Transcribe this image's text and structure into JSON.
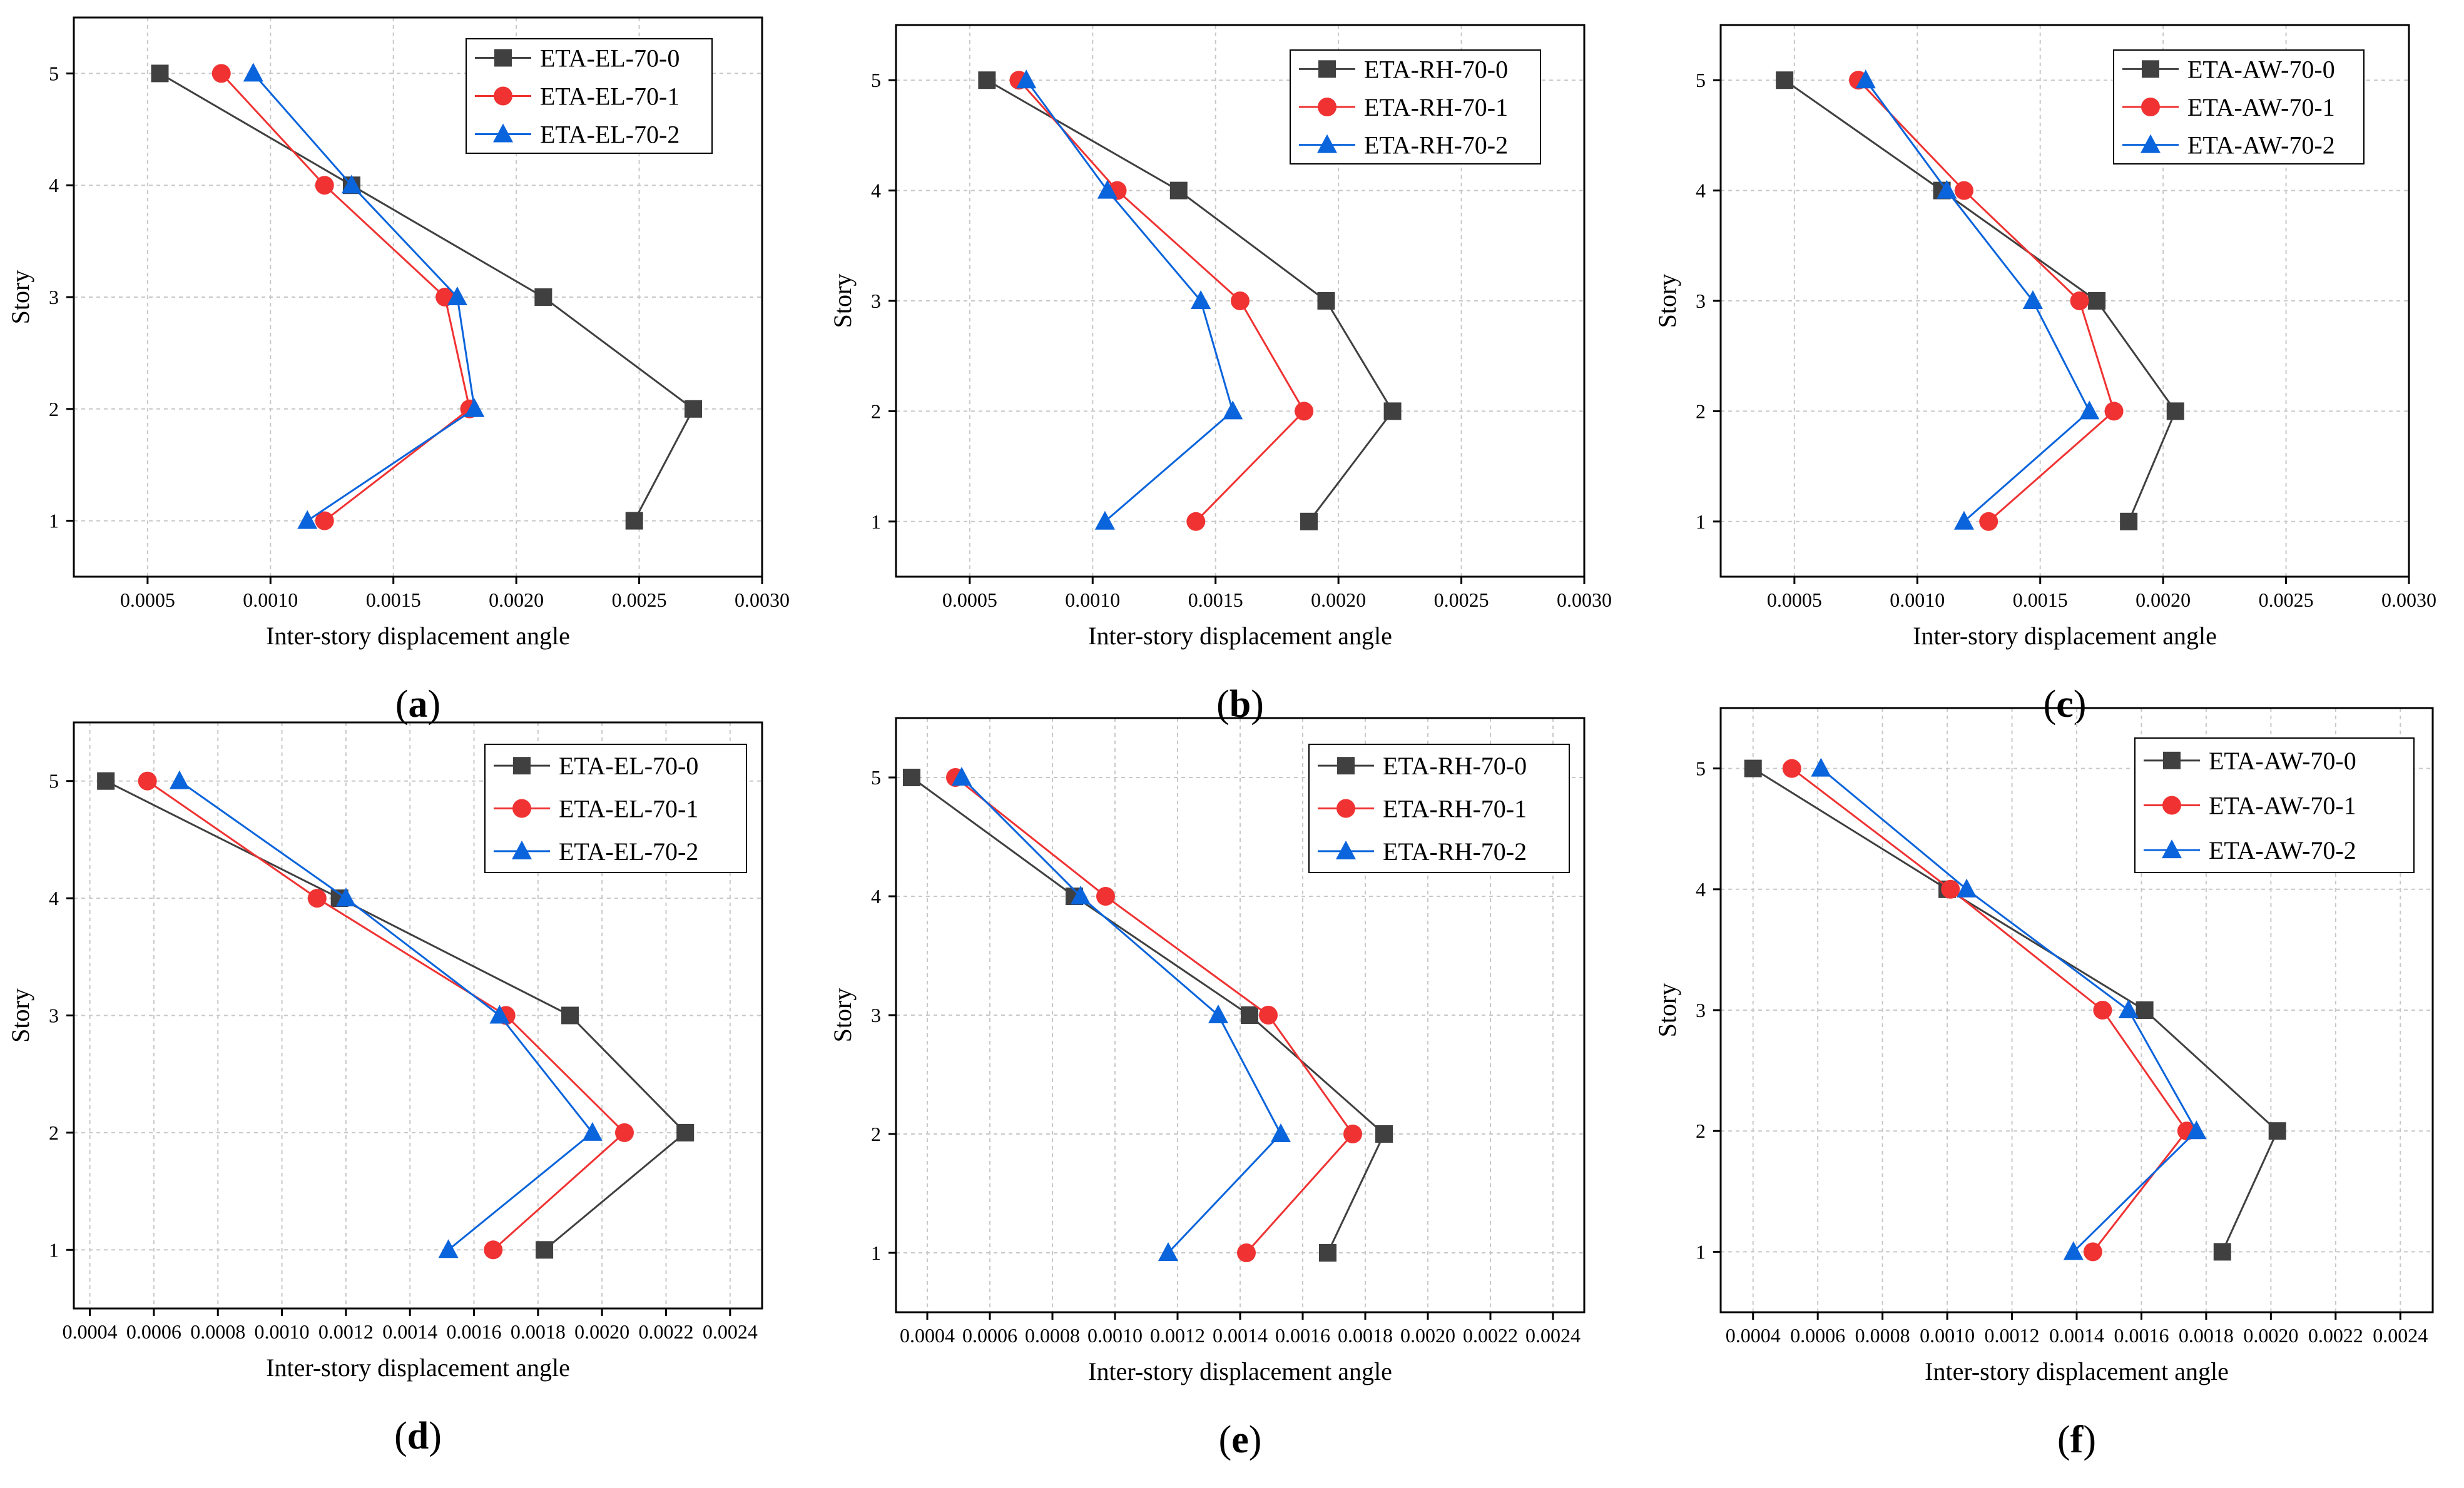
{
  "colors": {
    "series": [
      "#404040",
      "#f03232",
      "#0a64dc"
    ],
    "grid": "#c8c8c8",
    "axis": "#000000"
  },
  "chart_data": [
    {
      "type": "line",
      "caption": "a",
      "xlabel": "Inter-story displacement angle",
      "ylabel": "Story",
      "xlim": [
        0.0002,
        0.003
      ],
      "ylim": [
        0.5,
        5.5
      ],
      "xticks": [
        0.0005,
        0.001,
        0.0015,
        0.002,
        0.0025,
        0.003
      ],
      "xtick_labels": [
        "0.0005",
        "0.0010",
        "0.0015",
        "0.0020",
        "0.0025",
        "0.0030"
      ],
      "yticks": [
        1,
        2,
        3,
        4,
        5
      ],
      "grid": true,
      "legend": "top-right",
      "series": [
        {
          "name": "ETA-EL-70-0",
          "marker": "square",
          "x": [
            0.00248,
            0.00272,
            0.00211,
            0.00133,
            0.00055
          ],
          "y": [
            1,
            2,
            3,
            4,
            5
          ]
        },
        {
          "name": "ETA-EL-70-1",
          "marker": "circle",
          "x": [
            0.00122,
            0.00181,
            0.00171,
            0.00122,
            0.0008
          ],
          "y": [
            1,
            2,
            3,
            4,
            5
          ]
        },
        {
          "name": "ETA-EL-70-2",
          "marker": "triangle",
          "x": [
            0.00115,
            0.00183,
            0.00176,
            0.00133,
            0.00093
          ],
          "y": [
            1,
            2,
            3,
            4,
            5
          ]
        }
      ]
    },
    {
      "type": "line",
      "caption": "b",
      "xlabel": "Inter-story displacement angle",
      "ylabel": "Story",
      "xlim": [
        0.0002,
        0.003
      ],
      "ylim": [
        0.5,
        5.5
      ],
      "xticks": [
        0.0005,
        0.001,
        0.0015,
        0.002,
        0.0025,
        0.003
      ],
      "xtick_labels": [
        "0.0005",
        "0.0010",
        "0.0015",
        "0.0020",
        "0.0025",
        "0.0030"
      ],
      "yticks": [
        1,
        2,
        3,
        4,
        5
      ],
      "grid": true,
      "legend": "top-right",
      "series": [
        {
          "name": "ETA-RH-70-0",
          "marker": "square",
          "x": [
            0.00188,
            0.00222,
            0.00195,
            0.00135,
            0.00057
          ],
          "y": [
            1,
            2,
            3,
            4,
            5
          ]
        },
        {
          "name": "ETA-RH-70-1",
          "marker": "circle",
          "x": [
            0.00142,
            0.00186,
            0.0016,
            0.0011,
            0.0007
          ],
          "y": [
            1,
            2,
            3,
            4,
            5
          ]
        },
        {
          "name": "ETA-RH-70-2",
          "marker": "triangle",
          "x": [
            0.00105,
            0.00157,
            0.00144,
            0.00106,
            0.00073
          ],
          "y": [
            1,
            2,
            3,
            4,
            5
          ]
        }
      ]
    },
    {
      "type": "line",
      "caption": "c",
      "xlabel": "Inter-story displacement angle",
      "ylabel": "Story",
      "xlim": [
        0.0002,
        0.003
      ],
      "ylim": [
        0.5,
        5.5
      ],
      "xticks": [
        0.0005,
        0.001,
        0.0015,
        0.002,
        0.0025,
        0.003
      ],
      "xtick_labels": [
        "0.0005",
        "0.0010",
        "0.0015",
        "0.0020",
        "0.0025",
        "0.0030"
      ],
      "yticks": [
        1,
        2,
        3,
        4,
        5
      ],
      "grid": true,
      "legend": "top-right",
      "series": [
        {
          "name": "ETA-AW-70-0",
          "marker": "square",
          "x": [
            0.00186,
            0.00205,
            0.00173,
            0.0011,
            0.00046
          ],
          "y": [
            1,
            2,
            3,
            4,
            5
          ]
        },
        {
          "name": "ETA-AW-70-1",
          "marker": "circle",
          "x": [
            0.00129,
            0.0018,
            0.00166,
            0.00119,
            0.00076
          ],
          "y": [
            1,
            2,
            3,
            4,
            5
          ]
        },
        {
          "name": "ETA-AW-70-2",
          "marker": "triangle",
          "x": [
            0.00119,
            0.0017,
            0.00147,
            0.00112,
            0.00079
          ],
          "y": [
            1,
            2,
            3,
            4,
            5
          ]
        }
      ]
    },
    {
      "type": "line",
      "caption": "d",
      "xlabel": "Inter-story displacement angle",
      "ylabel": "Story",
      "xlim": [
        0.00035,
        0.0025
      ],
      "ylim": [
        0.5,
        5.5
      ],
      "xticks": [
        0.0004,
        0.0006,
        0.0008,
        0.001,
        0.0012,
        0.0014,
        0.0016,
        0.0018,
        0.002,
        0.0022,
        0.0024
      ],
      "xtick_labels": [
        "0.0004",
        "0.0006",
        "0.0008",
        "0.0010",
        "0.0012",
        "0.0014",
        "0.0016",
        "0.0018",
        "0.0020",
        "0.0022",
        "0.0024"
      ],
      "yticks": [
        1,
        2,
        3,
        4,
        5
      ],
      "grid": true,
      "legend": "top-right",
      "series": [
        {
          "name": "ETA-EL-70-0",
          "marker": "square",
          "x": [
            0.00182,
            0.00226,
            0.0019,
            0.00118,
            0.00045
          ],
          "y": [
            1,
            2,
            3,
            4,
            5
          ]
        },
        {
          "name": "ETA-EL-70-1",
          "marker": "circle",
          "x": [
            0.00166,
            0.00207,
            0.0017,
            0.00111,
            0.00058
          ],
          "y": [
            1,
            2,
            3,
            4,
            5
          ]
        },
        {
          "name": "ETA-EL-70-2",
          "marker": "triangle",
          "x": [
            0.00152,
            0.00197,
            0.00168,
            0.0012,
            0.00068
          ],
          "y": [
            1,
            2,
            3,
            4,
            5
          ]
        }
      ]
    },
    {
      "type": "line",
      "caption": "e",
      "xlabel": "Inter-story displacement angle",
      "ylabel": "Story",
      "xlim": [
        0.0003,
        0.0025
      ],
      "ylim": [
        0.5,
        5.5
      ],
      "xticks": [
        0.0004,
        0.0006,
        0.0008,
        0.001,
        0.0012,
        0.0014,
        0.0016,
        0.0018,
        0.002,
        0.0022,
        0.0024
      ],
      "xtick_labels": [
        "0.0004",
        "0.0006",
        "0.0008",
        "0.0010",
        "0.0012",
        "0.0014",
        "0.0016",
        "0.0018",
        "0.0020",
        "0.0022",
        "0.0024"
      ],
      "yticks": [
        1,
        2,
        3,
        4,
        5
      ],
      "grid": true,
      "legend": "top-right",
      "series": [
        {
          "name": "ETA-RH-70-0",
          "marker": "square",
          "x": [
            0.00168,
            0.00186,
            0.00143,
            0.00087,
            0.00035
          ],
          "y": [
            1,
            2,
            3,
            4,
            5
          ]
        },
        {
          "name": "ETA-RH-70-1",
          "marker": "circle",
          "x": [
            0.00142,
            0.00176,
            0.00149,
            0.00097,
            0.00049
          ],
          "y": [
            1,
            2,
            3,
            4,
            5
          ]
        },
        {
          "name": "ETA-RH-70-2",
          "marker": "triangle",
          "x": [
            0.00117,
            0.00153,
            0.00133,
            0.00089,
            0.00051
          ],
          "y": [
            1,
            2,
            3,
            4,
            5
          ]
        }
      ]
    },
    {
      "type": "line",
      "caption": "f",
      "xlabel": "Inter-story displacement angle",
      "ylabel": "Story",
      "xlim": [
        0.0003,
        0.0025
      ],
      "ylim": [
        0.5,
        5.5
      ],
      "xticks": [
        0.0004,
        0.0006,
        0.0008,
        0.001,
        0.0012,
        0.0014,
        0.0016,
        0.0018,
        0.002,
        0.0022,
        0.0024
      ],
      "xtick_labels": [
        "0.0004",
        "0.0006",
        "0.0008",
        "0.0010",
        "0.0012",
        "0.0014",
        "0.0016",
        "0.0018",
        "0.0020",
        "0.0022",
        "0.0024"
      ],
      "yticks": [
        1,
        2,
        3,
        4,
        5
      ],
      "grid": true,
      "legend": "top-right",
      "series": [
        {
          "name": "ETA-AW-70-0",
          "marker": "square",
          "x": [
            0.00185,
            0.00202,
            0.00161,
            0.001,
            0.0004
          ],
          "y": [
            1,
            2,
            3,
            4,
            5
          ]
        },
        {
          "name": "ETA-AW-70-1",
          "marker": "circle",
          "x": [
            0.00145,
            0.00174,
            0.00148,
            0.00101,
            0.00052
          ],
          "y": [
            1,
            2,
            3,
            4,
            5
          ]
        },
        {
          "name": "ETA-AW-70-2",
          "marker": "triangle",
          "x": [
            0.00139,
            0.00177,
            0.00156,
            0.00106,
            0.00061
          ],
          "y": [
            1,
            2,
            3,
            4,
            5
          ]
        }
      ]
    }
  ]
}
